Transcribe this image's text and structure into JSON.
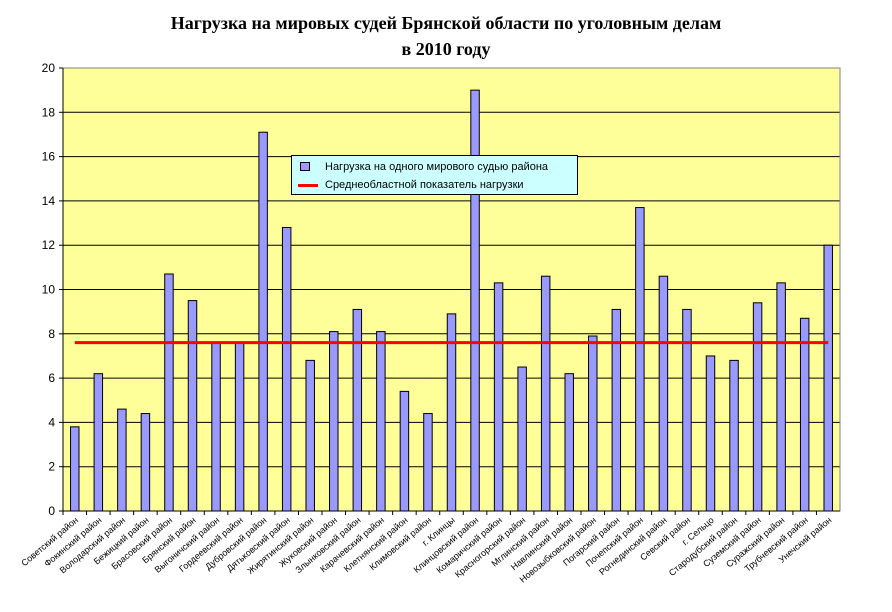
{
  "chart_data": {
    "type": "bar",
    "title": "Нагрузка на мировых судей Брянской области по уголовным делам в 2010 году",
    "title_lines": [
      "Нагрузка на мировых судей Брянской области по уголовным делам",
      "в 2010 году"
    ],
    "categories": [
      "Советский район",
      "Фокинский район",
      "Володарский район",
      "Бежицкий район",
      "Брасовский район",
      "Брянский район",
      "Выгоничский район",
      "Гордеевский район",
      "Дубровский район",
      "Дятьковский район",
      "Жирятинский район",
      "Жуковский район",
      "Злынковский район",
      "Карачевский район",
      "Клетнянский район",
      "Климовский район",
      "г. Клинцы",
      "Клинцовский район",
      "Комаричский район",
      "Красногорский район",
      "Мглинский район",
      "Навлинский район",
      "Новозыбковский район",
      "Погарский район",
      "Почепский район",
      "Рогнединский район",
      "Севский район",
      "г. Сельцо",
      "Стародубский район",
      "Суземский район",
      "Суражский район",
      "Трубчевский район",
      "Унечский район"
    ],
    "series": [
      {
        "name": "Нагрузка на одного мирового судью района",
        "type": "bar",
        "color": "#9999ff",
        "values": [
          3.8,
          6.2,
          4.6,
          4.4,
          10.7,
          9.5,
          7.6,
          7.6,
          17.1,
          12.8,
          6.8,
          8.1,
          9.1,
          8.1,
          5.4,
          4.4,
          8.9,
          19.0,
          10.3,
          6.5,
          10.6,
          6.2,
          7.9,
          9.1,
          13.7,
          10.6,
          9.1,
          7.0,
          6.8,
          9.4,
          10.3,
          8.7,
          12.0
        ]
      },
      {
        "name": "Среднеобластной показатель нагрузки",
        "type": "line",
        "color": "#ff0000",
        "value": 7.6
      }
    ],
    "xlabel": "",
    "ylabel": "",
    "ylim": [
      0,
      20
    ],
    "yticks": [
      0,
      2,
      4,
      6,
      8,
      10,
      12,
      14,
      16,
      18,
      20
    ],
    "grid": true,
    "legend_position": "top-center",
    "plot_background": "#ffff99"
  }
}
